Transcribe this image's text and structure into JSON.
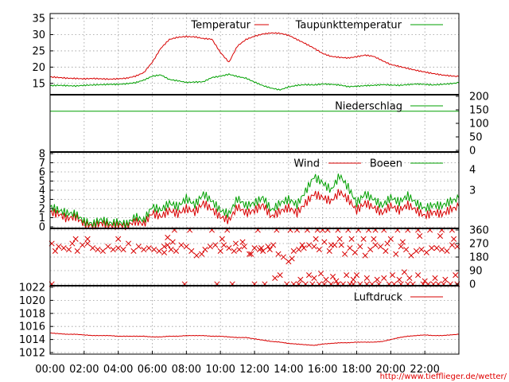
{
  "credit": "http://www.tiefflieger.de/wetter/",
  "colors": {
    "red": "#d80000",
    "green": "#00a000",
    "grid": "#9a9a9a"
  },
  "x_axis": {
    "range_hours": [
      0,
      24
    ],
    "tick_labels": [
      "00:00",
      "02:00",
      "04:00",
      "06:00",
      "08:00",
      "10:00",
      "12:00",
      "14:00",
      "16:00",
      "18:00",
      "20:00",
      "22:00"
    ]
  },
  "chart_data": [
    {
      "type": "line",
      "ylim": [
        12,
        36
      ],
      "yticks": [
        15,
        20,
        25,
        30,
        35
      ],
      "grid": true,
      "legend": "top",
      "x": [
        0,
        1,
        2,
        3,
        4,
        5,
        6,
        7,
        8,
        9,
        10,
        11,
        12,
        13,
        14,
        15,
        16,
        17,
        18,
        19,
        20,
        21,
        22,
        23,
        24,
        25,
        26,
        27,
        28,
        29,
        30,
        31,
        32,
        33,
        34,
        35,
        36,
        37,
        38,
        39,
        40,
        41,
        42,
        43,
        44,
        45,
        46,
        47,
        48
      ],
      "series": [
        {
          "name": "Temperatur",
          "color": "#d80000",
          "values": [
            17,
            16.8,
            16.6,
            16.5,
            16.4,
            16.5,
            16.4,
            16.3,
            16.4,
            16.6,
            17.2,
            18.3,
            21.5,
            25.8,
            28.5,
            29.2,
            29.4,
            29.3,
            28.8,
            28.6,
            24.5,
            21.5,
            26.5,
            28.5,
            29.5,
            30.2,
            30.5,
            30.4,
            29.8,
            28.5,
            27.2,
            25.8,
            24.2,
            23.3,
            23.0,
            22.8,
            23.2,
            23.7,
            23.3,
            22.0,
            20.8,
            20.2,
            19.6,
            19.0,
            18.5,
            18.0,
            17.6,
            17.3,
            17.1
          ]
        },
        {
          "name": "Taupunkttemperatur",
          "color": "#00a000",
          "values": [
            14.3,
            14.4,
            14.3,
            14.2,
            14.4,
            14.5,
            14.6,
            14.7,
            14.7,
            14.9,
            15.2,
            16.0,
            17.2,
            17.6,
            16.2,
            15.8,
            15.3,
            15.4,
            15.5,
            16.8,
            17.2,
            17.8,
            17.1,
            16.6,
            15.4,
            14.3,
            13.5,
            13.0,
            13.9,
            14.4,
            14.6,
            14.5,
            14.8,
            14.7,
            14.5,
            14.0,
            14.1,
            14.3,
            14.4,
            14.6,
            14.5,
            14.4,
            14.6,
            14.8,
            14.7,
            14.5,
            14.7,
            14.9,
            15.2
          ]
        }
      ]
    },
    {
      "type": "line",
      "ylim": [
        0,
        200
      ],
      "yticks": [
        0,
        50,
        100,
        150,
        200
      ],
      "grid": false,
      "legend": "top-right",
      "x": [
        0,
        48
      ],
      "series": [
        {
          "name": "Niederschlag",
          "color": "#00a000",
          "values": [
            145,
            145
          ]
        }
      ]
    },
    {
      "type": "line",
      "ylim": [
        0,
        8
      ],
      "yticks": [
        0,
        1,
        2,
        3,
        4,
        5,
        6,
        7,
        8
      ],
      "y2ticks": [
        3,
        4
      ],
      "grid": true,
      "legend": "top",
      "x": [
        0,
        1,
        2,
        3,
        4,
        5,
        6,
        7,
        8,
        9,
        10,
        11,
        12,
        13,
        14,
        15,
        16,
        17,
        18,
        19,
        20,
        21,
        22,
        23,
        24,
        25,
        26,
        27,
        28,
        29,
        30,
        31,
        32,
        33,
        34,
        35,
        36,
        37,
        38,
        39,
        40,
        41,
        42,
        43,
        44,
        45,
        46,
        47,
        48
      ],
      "series": [
        {
          "name": "Wind",
          "color": "#d80000",
          "values": [
            1.6,
            1.4,
            0.9,
            1.1,
            0.3,
            0.1,
            0.4,
            0.1,
            0.2,
            0.1,
            0.6,
            0.3,
            1.5,
            1.1,
            1.8,
            1.4,
            2.0,
            1.6,
            2.6,
            1.9,
            1.1,
            0.7,
            2.2,
            1.5,
            1.8,
            2.4,
            1.1,
            1.7,
            2.1,
            1.5,
            2.6,
            3.6,
            3.2,
            2.8,
            3.8,
            3.0,
            1.8,
            2.6,
            2.1,
            1.5,
            2.3,
            1.8,
            2.4,
            1.8,
            1.2,
            1.6,
            1.4,
            1.9,
            2.2
          ]
        },
        {
          "name": "Boeen",
          "color": "#00a000",
          "values": [
            2.2,
            1.8,
            1.5,
            1.4,
            0.6,
            0.3,
            0.8,
            0.4,
            0.5,
            0.3,
            1.1,
            0.7,
            2.2,
            1.8,
            2.6,
            2.2,
            3.1,
            2.4,
            3.6,
            2.8,
            1.8,
            1.4,
            3.1,
            2.3,
            2.6,
            3.2,
            1.8,
            2.6,
            3.0,
            2.4,
            3.9,
            5.5,
            4.8,
            4.0,
            5.6,
            4.3,
            2.6,
            3.6,
            3.0,
            2.3,
            3.2,
            2.7,
            3.4,
            2.6,
            2.0,
            2.4,
            2.3,
            2.8,
            3.1
          ]
        }
      ]
    },
    {
      "type": "scatter",
      "ylim": [
        0,
        360
      ],
      "yticks": [
        0,
        90,
        180,
        270,
        360
      ],
      "grid": true,
      "marker": "x",
      "color": "#d80000",
      "points": [
        [
          0.1,
          270
        ],
        [
          0.3,
          220
        ],
        [
          0.5,
          250
        ],
        [
          0.8,
          240
        ],
        [
          1.1,
          230
        ],
        [
          1.3,
          270
        ],
        [
          1.6,
          220
        ],
        [
          1.9,
          260
        ],
        [
          2.2,
          270
        ],
        [
          2.5,
          240
        ],
        [
          2.8,
          230
        ],
        [
          3.1,
          220
        ],
        [
          3.4,
          250
        ],
        [
          3.7,
          230
        ],
        [
          4.0,
          240
        ],
        [
          4.3,
          230
        ],
        [
          4.6,
          270
        ],
        [
          4.9,
          220
        ],
        [
          5.2,
          250
        ],
        [
          5.5,
          230
        ],
        [
          5.8,
          240
        ],
        [
          6.1,
          230
        ],
        [
          6.4,
          220
        ],
        [
          6.7,
          250
        ],
        [
          6.9,
          310
        ],
        [
          7.1,
          230
        ],
        [
          7.4,
          220
        ],
        [
          7.7,
          260
        ],
        [
          8.0,
          250
        ],
        [
          8.3,
          220
        ],
        [
          8.6,
          190
        ],
        [
          8.9,
          200
        ],
        [
          9.1,
          230
        ],
        [
          9.4,
          250
        ],
        [
          9.7,
          260
        ],
        [
          10.0,
          220
        ],
        [
          10.2,
          260
        ],
        [
          10.5,
          240
        ],
        [
          10.8,
          220
        ],
        [
          11.1,
          230
        ],
        [
          11.4,
          250
        ],
        [
          11.7,
          200
        ],
        [
          12.0,
          240
        ],
        [
          12.3,
          230
        ],
        [
          12.5,
          220
        ],
        [
          12.8,
          250
        ],
        [
          13.1,
          260
        ],
        [
          13.4,
          200
        ],
        [
          13.7,
          180
        ],
        [
          14.0,
          150
        ],
        [
          14.3,
          220
        ],
        [
          14.6,
          230
        ],
        [
          14.9,
          240
        ],
        [
          15.2,
          260
        ],
        [
          15.5,
          250
        ],
        [
          15.8,
          230
        ],
        [
          16.1,
          280
        ],
        [
          16.4,
          220
        ],
        [
          16.7,
          260
        ],
        [
          17.0,
          300
        ],
        [
          17.3,
          200
        ],
        [
          17.6,
          240
        ],
        [
          17.9,
          210
        ],
        [
          18.2,
          250
        ],
        [
          18.5,
          190
        ],
        [
          18.8,
          230
        ],
        [
          19.1,
          260
        ],
        [
          19.4,
          250
        ],
        [
          19.7,
          220
        ],
        [
          20.0,
          300
        ],
        [
          20.3,
          200
        ],
        [
          20.6,
          250
        ],
        [
          20.9,
          230
        ],
        [
          21.2,
          190
        ],
        [
          21.5,
          220
        ],
        [
          21.8,
          230
        ],
        [
          22.1,
          210
        ],
        [
          22.4,
          240
        ],
        [
          22.7,
          240
        ],
        [
          23.0,
          230
        ],
        [
          23.3,
          220
        ],
        [
          23.6,
          260
        ],
        [
          23.9,
          250
        ],
        [
          4.0,
          300
        ],
        [
          6.7,
          210
        ],
        [
          6.9,
          260
        ],
        [
          7.2,
          280
        ],
        [
          10.1,
          300
        ],
        [
          10.9,
          270
        ],
        [
          11.3,
          280
        ],
        [
          11.8,
          200
        ],
        [
          12.4,
          240
        ],
        [
          12.9,
          230
        ],
        [
          14.2,
          170
        ],
        [
          14.8,
          260
        ],
        [
          15.6,
          300
        ],
        [
          16.5,
          260
        ],
        [
          17.1,
          260
        ],
        [
          17.7,
          300
        ],
        [
          18.4,
          300
        ],
        [
          19.0,
          300
        ],
        [
          19.8,
          270
        ],
        [
          20.7,
          280
        ],
        [
          21.7,
          320
        ],
        [
          22.9,
          320
        ],
        [
          23.7,
          300
        ],
        [
          2.2,
          300
        ],
        [
          1.5,
          300
        ],
        [
          0.1,
          0
        ],
        [
          7.9,
          0
        ],
        [
          9.8,
          0
        ],
        [
          10.7,
          0
        ],
        [
          12.0,
          0
        ],
        [
          12.6,
          0
        ],
        [
          13.9,
          0
        ],
        [
          14.3,
          0
        ],
        [
          14.6,
          0
        ],
        [
          15.0,
          0
        ],
        [
          15.4,
          0
        ],
        [
          15.8,
          0
        ],
        [
          16.1,
          0
        ],
        [
          16.5,
          0
        ],
        [
          16.9,
          0
        ],
        [
          17.2,
          0
        ],
        [
          17.6,
          0
        ],
        [
          17.8,
          0
        ],
        [
          18.2,
          0
        ],
        [
          18.6,
          0
        ],
        [
          18.9,
          0
        ],
        [
          19.3,
          0
        ],
        [
          19.9,
          0
        ],
        [
          20.2,
          0
        ],
        [
          20.6,
          0
        ],
        [
          21.0,
          0
        ],
        [
          21.3,
          0
        ],
        [
          21.9,
          0
        ],
        [
          22.2,
          0
        ],
        [
          22.5,
          0
        ],
        [
          22.8,
          0
        ],
        [
          23.1,
          0
        ],
        [
          23.5,
          0
        ],
        [
          23.9,
          0
        ],
        [
          7.3,
          360
        ],
        [
          8.2,
          360
        ],
        [
          9.5,
          360
        ],
        [
          10.4,
          360
        ],
        [
          12.2,
          360
        ],
        [
          13.3,
          360
        ],
        [
          14.1,
          360
        ],
        [
          14.5,
          360
        ],
        [
          15.1,
          360
        ],
        [
          15.7,
          360
        ],
        [
          16.0,
          360
        ],
        [
          16.3,
          360
        ],
        [
          16.9,
          360
        ],
        [
          17.5,
          360
        ],
        [
          18.1,
          360
        ],
        [
          18.7,
          360
        ],
        [
          19.1,
          360
        ],
        [
          19.6,
          360
        ],
        [
          20.4,
          360
        ],
        [
          21.0,
          360
        ],
        [
          21.6,
          360
        ],
        [
          22.3,
          360
        ],
        [
          23.0,
          360
        ],
        [
          23.6,
          360
        ],
        [
          13.2,
          40
        ],
        [
          13.5,
          60
        ],
        [
          14.7,
          30
        ],
        [
          15.2,
          60
        ],
        [
          15.5,
          40
        ],
        [
          15.9,
          70
        ],
        [
          16.2,
          30
        ],
        [
          16.6,
          50
        ],
        [
          16.8,
          20
        ],
        [
          17.4,
          60
        ],
        [
          17.8,
          30
        ],
        [
          18.0,
          60
        ],
        [
          18.6,
          40
        ],
        [
          19.2,
          30
        ],
        [
          19.6,
          40
        ],
        [
          20.1,
          60
        ],
        [
          20.5,
          30
        ],
        [
          20.8,
          80
        ],
        [
          21.1,
          40
        ],
        [
          21.6,
          60
        ],
        [
          22.0,
          20
        ],
        [
          22.6,
          40
        ],
        [
          23.2,
          30
        ],
        [
          23.8,
          60
        ]
      ]
    },
    {
      "type": "line",
      "ylim": [
        1012,
        1022
      ],
      "yticks": [
        1012,
        1014,
        1016,
        1018,
        1020,
        1022
      ],
      "grid": true,
      "legend": "top-right",
      "x": [
        0,
        1,
        2,
        3,
        4,
        5,
        6,
        7,
        8,
        9,
        10,
        11,
        12,
        13,
        14,
        15,
        16,
        17,
        18,
        19,
        20,
        21,
        22,
        23,
        24,
        25,
        26,
        27,
        28,
        29,
        30,
        31,
        32,
        33,
        34,
        35,
        36,
        37,
        38,
        39,
        40,
        41,
        42,
        43,
        44,
        45,
        46,
        47,
        48
      ],
      "series": [
        {
          "name": "Luftdruck",
          "color": "#d80000",
          "values": [
            1015.0,
            1014.9,
            1014.8,
            1014.8,
            1014.7,
            1014.6,
            1014.6,
            1014.6,
            1014.5,
            1014.5,
            1014.5,
            1014.5,
            1014.4,
            1014.4,
            1014.5,
            1014.5,
            1014.6,
            1014.6,
            1014.6,
            1014.5,
            1014.5,
            1014.4,
            1014.3,
            1014.3,
            1014.1,
            1013.9,
            1013.7,
            1013.6,
            1013.4,
            1013.3,
            1013.2,
            1013.1,
            1013.3,
            1013.4,
            1013.5,
            1013.5,
            1013.6,
            1013.6,
            1013.6,
            1013.7,
            1014.0,
            1014.3,
            1014.5,
            1014.6,
            1014.7,
            1014.6,
            1014.6,
            1014.7,
            1014.8
          ]
        }
      ]
    }
  ]
}
